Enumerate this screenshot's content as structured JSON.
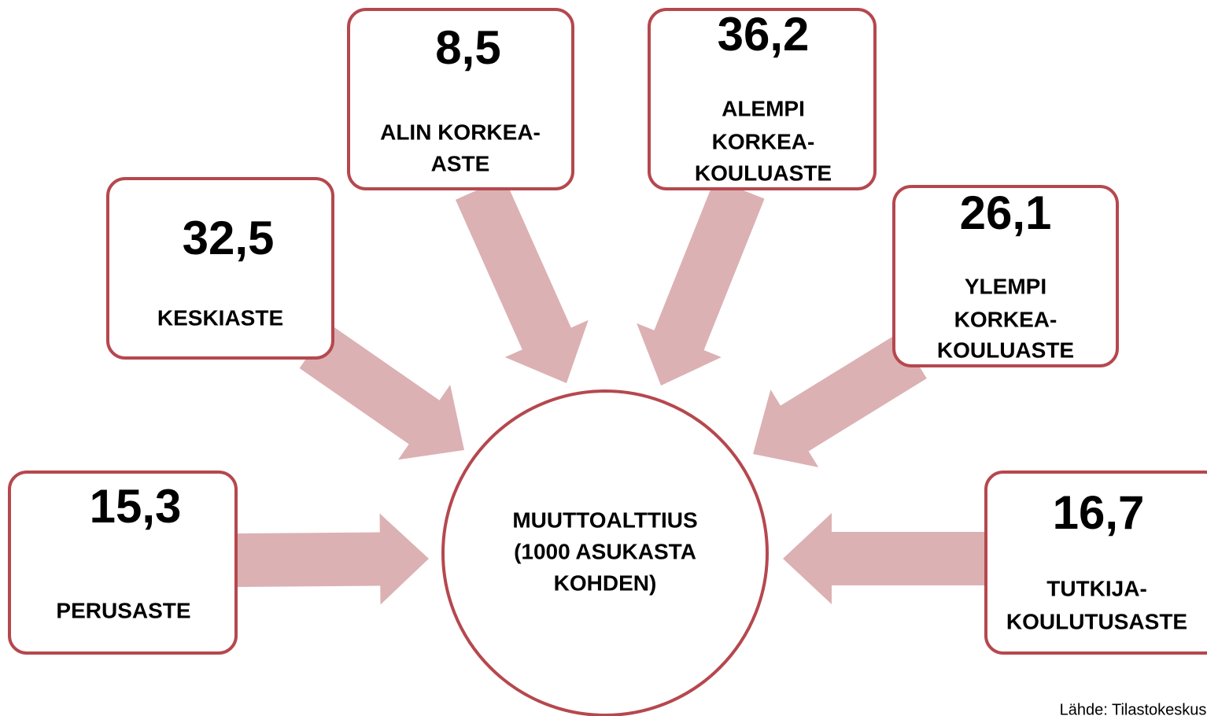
{
  "center": {
    "lines": [
      "MUUTTOALTTIUS",
      "(1000 ASUKASTA",
      "KOHDEN)"
    ]
  },
  "nodes": [
    {
      "value": "15,3",
      "lines": [
        "PERUSASTE"
      ]
    },
    {
      "value": "32,5",
      "lines": [
        "KESKIASTE"
      ]
    },
    {
      "value": "8,5",
      "lines": [
        "ALIN KORKEA-",
        "ASTE"
      ]
    },
    {
      "value": "36,2",
      "lines": [
        "ALEMPI",
        "KORKEA-",
        "KOULUASTE"
      ]
    },
    {
      "value": "26,1",
      "lines": [
        "YLEMPI",
        "KORKEA-",
        "KOULUASTE"
      ]
    },
    {
      "value": "16,7",
      "lines": [
        "TUTKIJA-",
        "KOULUTUSASTE"
      ]
    }
  ],
  "source": "Lähde: Tilastokeskus"
}
